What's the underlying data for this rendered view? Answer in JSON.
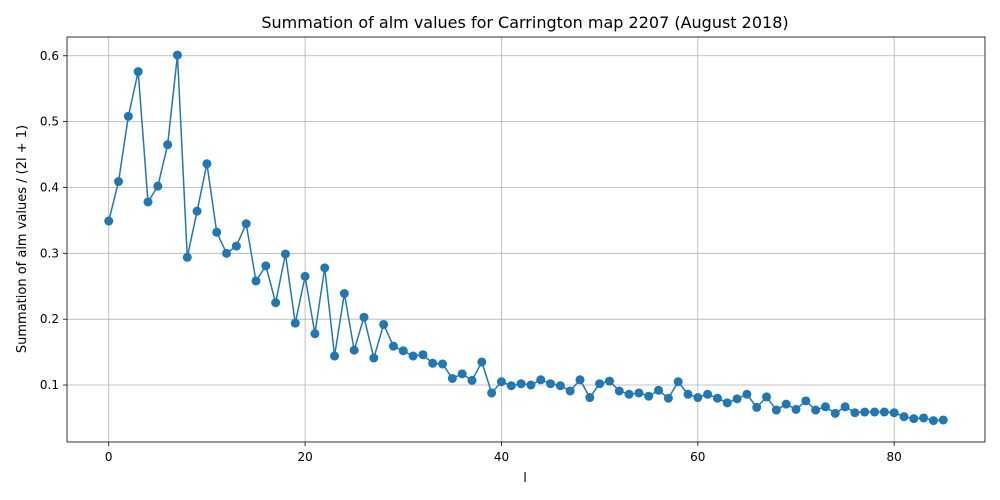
{
  "chart_data": {
    "type": "line",
    "title": "Summation of alm values for Carrington map 2207 (August 2018)",
    "xlabel": "l",
    "ylabel": "Summation of alm values / (2l + 1)",
    "xlim": [
      -4.25,
      89.25
    ],
    "ylim": [
      0.0135,
      0.6285
    ],
    "xticks": [
      0,
      20,
      40,
      60,
      80
    ],
    "yticks": [
      0.1,
      0.2,
      0.3,
      0.4,
      0.5,
      0.6
    ],
    "xtick_labels": [
      "0",
      "20",
      "40",
      "60",
      "80"
    ],
    "ytick_labels": [
      "0.1",
      "0.2",
      "0.3",
      "0.4",
      "0.5",
      "0.6"
    ],
    "grid": true,
    "color": "#1f77b4",
    "marker": "circle",
    "series": [
      {
        "x": [
          0,
          1,
          2,
          3,
          4,
          5,
          6,
          7,
          8,
          9,
          10,
          11,
          12,
          13,
          14,
          15,
          16,
          17,
          18,
          19,
          20,
          21,
          22,
          23,
          24,
          25,
          26,
          27,
          28,
          29,
          30,
          31,
          32,
          33,
          34,
          35,
          36,
          37,
          38,
          39,
          40,
          41,
          42,
          43,
          44,
          45,
          46,
          47,
          48,
          49,
          50,
          51,
          52,
          53,
          54,
          55,
          56,
          57,
          58,
          59,
          60,
          61,
          62,
          63,
          64,
          65,
          66,
          67,
          68,
          69,
          70,
          71,
          72,
          73,
          74,
          75,
          76,
          77,
          78,
          79,
          80,
          81,
          82,
          83,
          84,
          85
        ],
        "values": [
          0.349,
          0.409,
          0.508,
          0.576,
          0.378,
          0.402,
          0.465,
          0.601,
          0.294,
          0.364,
          0.436,
          0.332,
          0.3,
          0.311,
          0.345,
          0.258,
          0.281,
          0.225,
          0.299,
          0.194,
          0.265,
          0.178,
          0.278,
          0.144,
          0.239,
          0.153,
          0.203,
          0.141,
          0.192,
          0.159,
          0.152,
          0.144,
          0.146,
          0.133,
          0.132,
          0.11,
          0.117,
          0.107,
          0.135,
          0.088,
          0.105,
          0.099,
          0.102,
          0.1,
          0.108,
          0.102,
          0.099,
          0.091,
          0.108,
          0.081,
          0.102,
          0.106,
          0.091,
          0.086,
          0.088,
          0.083,
          0.092,
          0.08,
          0.105,
          0.086,
          0.081,
          0.086,
          0.08,
          0.073,
          0.079,
          0.086,
          0.066,
          0.082,
          0.062,
          0.071,
          0.063,
          0.076,
          0.062,
          0.067,
          0.057,
          0.067,
          0.058,
          0.059,
          0.059,
          0.059,
          0.058,
          0.052,
          0.049,
          0.05,
          0.046,
          0.047
        ]
      }
    ]
  }
}
